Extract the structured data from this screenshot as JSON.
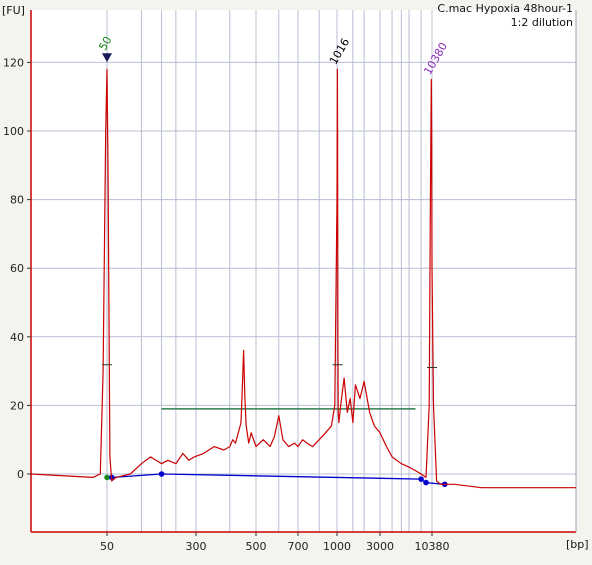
{
  "chart_data": {
    "type": "line",
    "title": "C.mac Hypoxia 48hour-1",
    "subtitle": "1:2 dilution",
    "ylabel": "[FU]",
    "xlabel": "[bp]",
    "ylim": [
      -20,
      130
    ],
    "y_ticks": [
      0,
      20,
      40,
      60,
      80,
      100,
      120
    ],
    "x_tick_labels": [
      "50",
      "300",
      "500",
      "700",
      "1000",
      "3000",
      "10380"
    ],
    "x_scale": "sizing-ladder (nonlinear)",
    "grid": true,
    "colors": {
      "trace": "#cc0000",
      "baseline": "#0000cc",
      "region": "#2e7d4f",
      "grid": "#b8bed4",
      "axis": "#cc0000"
    },
    "peaks": [
      {
        "label": "50",
        "size_bp": 50,
        "fu": 118,
        "color": "#1a8a1a",
        "marker": "triangle"
      },
      {
        "label": "1016",
        "size_bp": 1016,
        "fu": 118,
        "color": "#000000"
      },
      {
        "label": "10380",
        "size_bp": 10380,
        "fu": 115,
        "color": "#8a2bbe"
      }
    ],
    "region": {
      "from_bp": 150,
      "to_bp": 7000,
      "fu": 19
    },
    "series": [
      {
        "x": [
          15,
          40,
          45,
          47,
          49,
          50,
          51,
          53,
          55,
          60,
          80,
          100,
          120,
          150,
          170,
          200,
          230,
          260,
          290,
          320,
          350,
          380,
          400,
          410,
          420,
          430,
          440,
          445,
          450,
          455,
          460,
          470,
          480,
          500,
          530,
          560,
          580,
          600,
          620,
          650,
          680,
          700,
          730,
          760,
          800,
          850,
          900,
          950,
          980,
          1000,
          1010,
          1016,
          1022,
          1030,
          1050,
          1100,
          1200,
          1300,
          1400,
          1500,
          1600,
          1800,
          2000,
          2300,
          2600,
          3000,
          3500,
          4000,
          5000,
          6000,
          7000,
          8000,
          9000,
          9700,
          10000,
          10200,
          10300,
          10380,
          10450,
          10600,
          10800,
          11500,
          13000,
          20000
        ],
        "y": [
          0,
          -1,
          0,
          30,
          100,
          118,
          90,
          5,
          -2,
          -1,
          0,
          3,
          5,
          3,
          4,
          3,
          6,
          4,
          5,
          6,
          8,
          7,
          8,
          10,
          9,
          12,
          15,
          25,
          36,
          22,
          14,
          9,
          12,
          8,
          10,
          8,
          11,
          17,
          10,
          8,
          9,
          8,
          10,
          9,
          8,
          10,
          12,
          14,
          20,
          80,
          118,
          100,
          40,
          18,
          15,
          20,
          28,
          18,
          22,
          15,
          26,
          22,
          27,
          18,
          14,
          12,
          8,
          5,
          3,
          2,
          1,
          0,
          -1,
          20,
          80,
          115,
          100,
          60,
          20,
          -2,
          -3,
          -3,
          -4,
          -4
        ]
      }
    ],
    "baseline_points": [
      {
        "bp": 50,
        "fu": -1,
        "color": "#1a8a1a"
      },
      {
        "bp": 55,
        "fu": -1,
        "color": "#0000cc"
      },
      {
        "bp": 150,
        "fu": 0,
        "color": "#0000cc"
      },
      {
        "bp": 8000,
        "fu": -1.5,
        "color": "#0000cc"
      },
      {
        "bp": 9000,
        "fu": -2.5,
        "color": "#0000cc"
      },
      {
        "bp": 11000,
        "fu": -3,
        "color": "#0000cc"
      }
    ]
  }
}
